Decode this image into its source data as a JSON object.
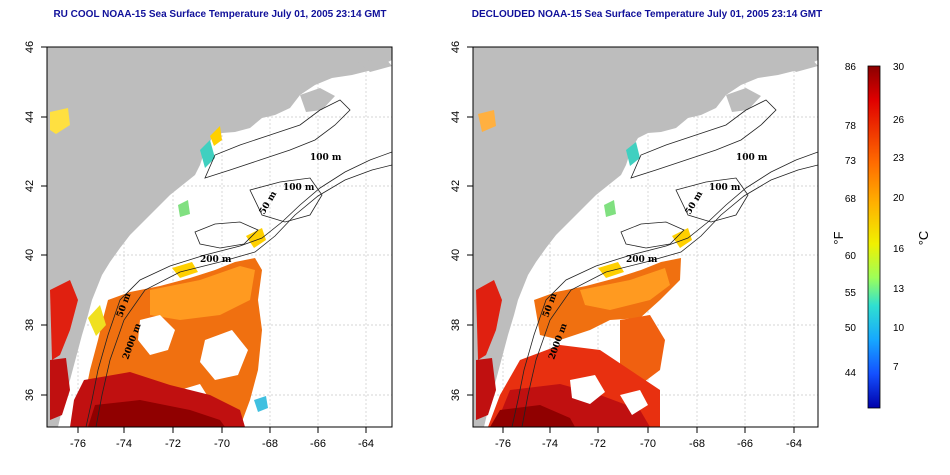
{
  "panels": [
    {
      "title": "RU COOL NOAA-15 Sea Surface Temperature July 01, 2005 23:14 GMT",
      "lat_ticks": [
        "46",
        "44",
        "42",
        "40",
        "38",
        "36"
      ],
      "lon_ticks": [
        "-76",
        "-74",
        "-72",
        "-70",
        "-68",
        "-66",
        "-64"
      ],
      "contour_labels": [
        "100 m",
        "100 m",
        "50 m",
        "200 m",
        "50 m",
        "2000 m"
      ]
    },
    {
      "title": "DECLOUDED NOAA-15 Sea Surface Temperature July 01, 2005 23:14 GMT",
      "lat_ticks": [
        "46",
        "44",
        "42",
        "40",
        "38",
        "36"
      ],
      "lon_ticks": [
        "-76",
        "-74",
        "-72",
        "-70",
        "-68",
        "-66",
        "-64"
      ],
      "contour_labels": [
        "100 m",
        "100 m",
        "50 m",
        "200 m",
        "50 m",
        "2000 m"
      ]
    }
  ],
  "colorbar": {
    "fahrenheit_label": "°F",
    "celsius_label": "°C",
    "fahrenheit_ticks": [
      "86",
      "78",
      "73",
      "68",
      "60",
      "55",
      "50",
      "44"
    ],
    "celsius_ticks": [
      "30",
      "26",
      "23",
      "20",
      "16",
      "13",
      "10",
      "7"
    ],
    "range_c": [
      5,
      30
    ],
    "colors": [
      "#ff0000",
      "#ff6a00",
      "#ffb000",
      "#ffee00",
      "#9cff5a",
      "#30e0d0",
      "#16a8ff",
      "#1450ff",
      "#0000cc"
    ]
  }
}
